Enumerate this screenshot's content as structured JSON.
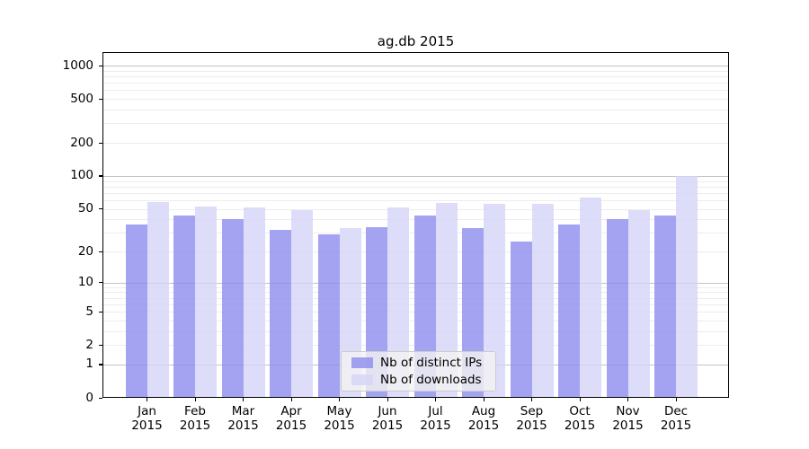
{
  "title": "ag.db 2015",
  "chart_data": {
    "type": "bar",
    "title": "ag.db 2015",
    "categories": [
      "Jan 2015",
      "Feb 2015",
      "Mar 2015",
      "Apr 2015",
      "May 2015",
      "Jun 2015",
      "Jul 2015",
      "Aug 2015",
      "Sep 2015",
      "Oct 2015",
      "Nov 2015",
      "Dec 2015"
    ],
    "x_tick_months": [
      "Jan",
      "Feb",
      "Mar",
      "Apr",
      "May",
      "Jun",
      "Jul",
      "Aug",
      "Sep",
      "Oct",
      "Nov",
      "Dec"
    ],
    "x_tick_year": "2015",
    "series": [
      {
        "name": "Nb of distinct IPs",
        "color": "rgba(140,140,238,0.8)",
        "values": [
          36,
          43,
          40,
          32,
          29,
          34,
          43,
          33,
          25,
          36,
          40,
          43
        ]
      },
      {
        "name": "Nb of downloads",
        "color": "rgba(212,212,247,0.8)",
        "values": [
          58,
          52,
          51,
          49,
          33,
          51,
          57,
          56,
          55,
          64,
          49,
          100
        ]
      }
    ],
    "yscale": "log1p",
    "y_ticks": [
      0,
      1,
      2,
      5,
      10,
      20,
      50,
      100,
      200,
      500,
      1000
    ],
    "ylim": [
      0,
      1325
    ],
    "grid": true,
    "legend_position": "lower center"
  },
  "colors": {
    "major_grid": "#c3c3c3",
    "minor_grid": "#ededed",
    "spine": "#000000",
    "legend_bg": "rgba(242,242,242,0.8)",
    "legend_border": "#cccccc"
  }
}
